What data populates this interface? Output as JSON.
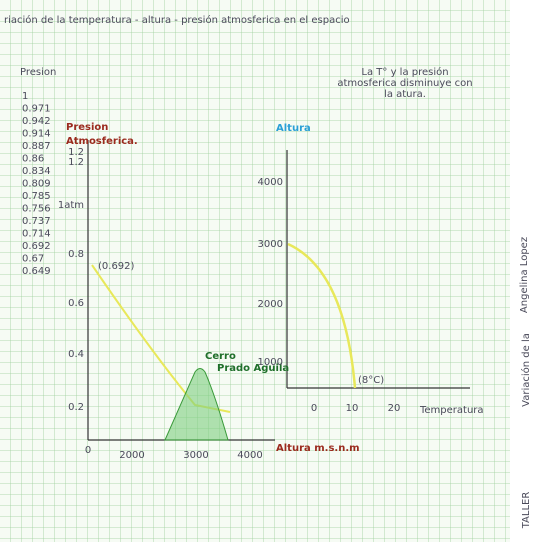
{
  "title": "riación de la temperatura - altura - presión atmosferica en el espacio",
  "pressure_list": {
    "heading": "Presion",
    "items": [
      "1",
      "0.971",
      "0.942",
      "0.914",
      "0.887",
      "0.86",
      "0.834",
      "0.809",
      "0.785",
      "0.756",
      "0.737",
      "0.714",
      "0.692",
      "0.67",
      "0.649"
    ]
  },
  "note": [
    "La T° y la presión",
    "atmosferica disminuye con",
    "la atura."
  ],
  "left_chart": {
    "y_label": [
      "Presion",
      "Atmosferica."
    ],
    "y_ticks": [
      "1.2",
      "1.2",
      "1atm",
      "0.8",
      "0.6",
      "0.4",
      "0.2"
    ],
    "origin": "0",
    "x_ticks": [
      "2000",
      "3000",
      "4000"
    ],
    "x_label": "Altura m.s.n.m",
    "point_label": "(0.692)",
    "hill_label": [
      "Cerro",
      "Prado Aguila"
    ]
  },
  "right_chart": {
    "y_label": "Altura",
    "y_ticks": [
      "4000",
      "3000",
      "2000",
      "1000"
    ],
    "x_ticks": [
      "0",
      "10",
      "20"
    ],
    "x_label": "Temperatura",
    "point_label": "(8°C)"
  },
  "side": {
    "name": "Angelina Lopez",
    "caption": "Variación de la",
    "footer": "TALLER"
  }
}
